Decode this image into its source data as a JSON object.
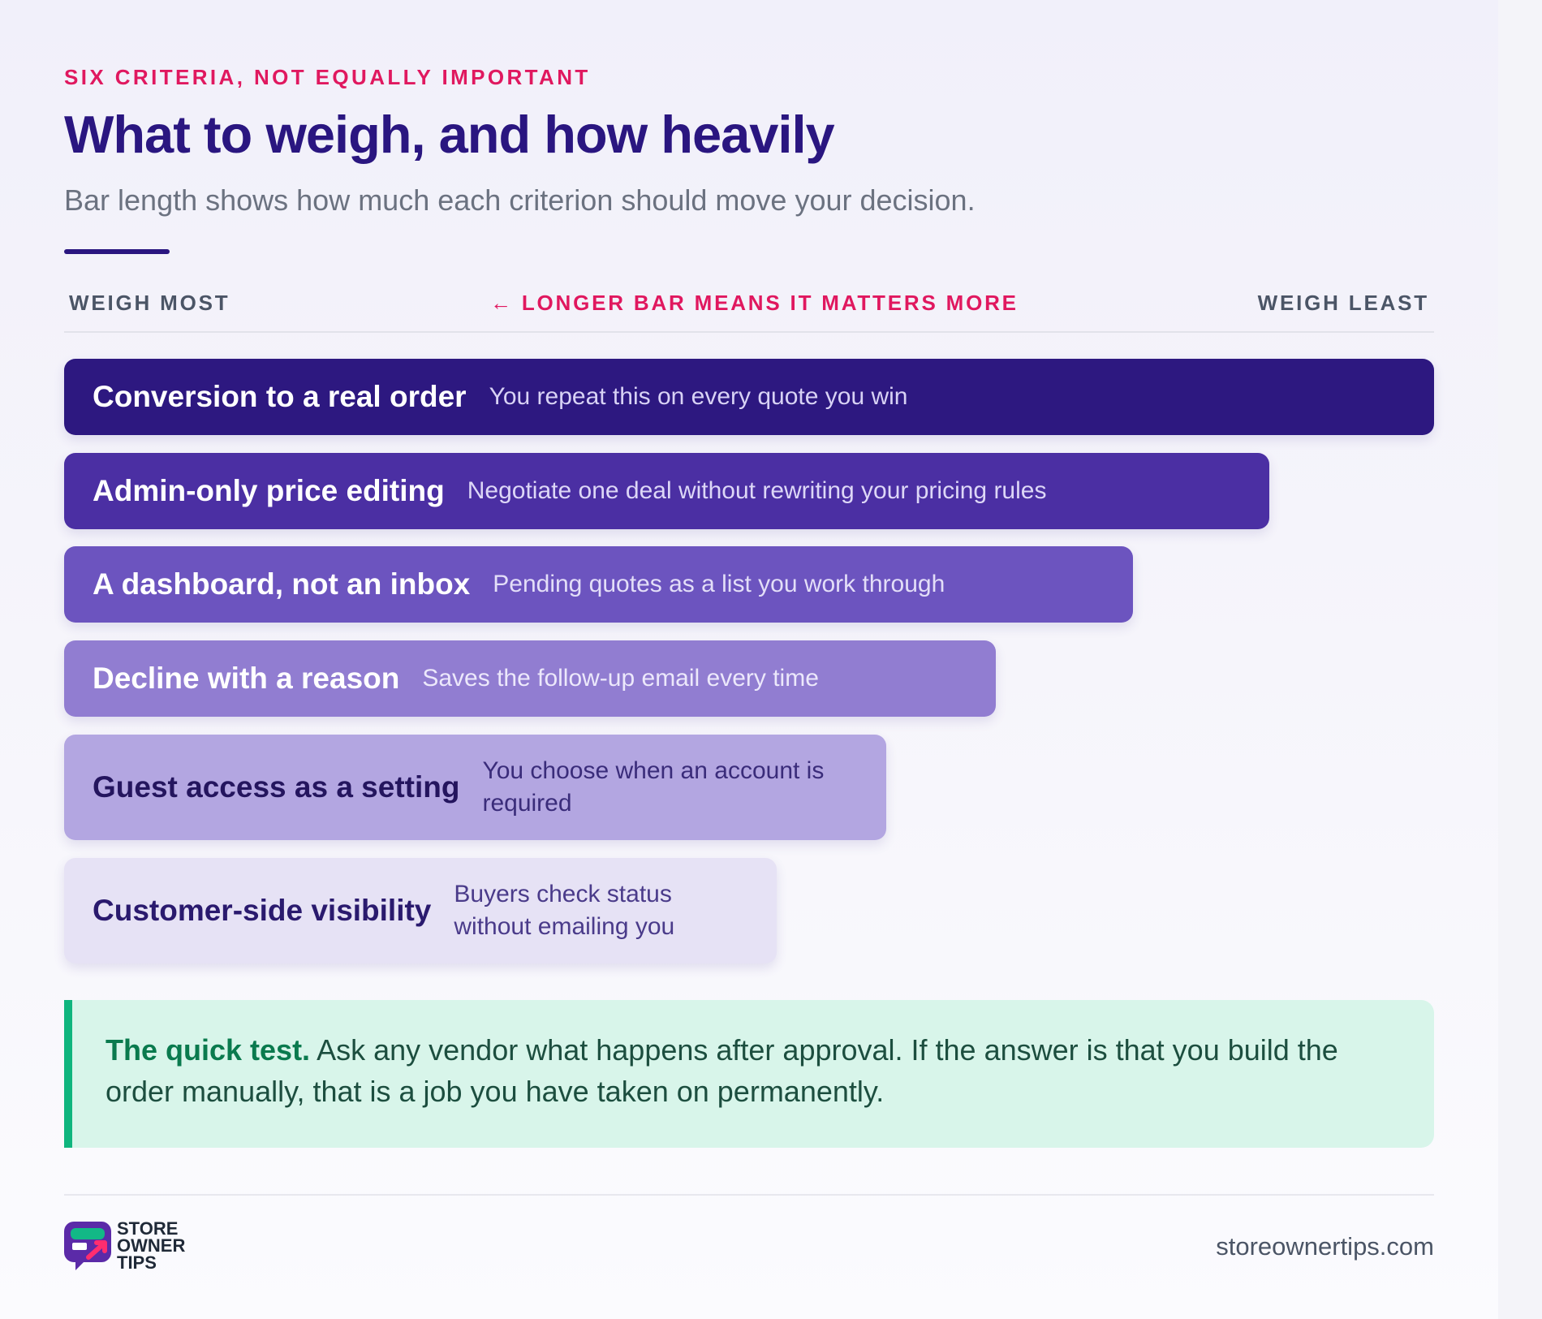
{
  "eyebrow": "SIX CRITERIA, NOT EQUALLY IMPORTANT",
  "title": "What to weigh, and how heavily",
  "subtitle": "Bar length shows how much each criterion should move your decision.",
  "scale": {
    "left": "WEIGH MOST",
    "middle": "← LONGER BAR MEANS IT MATTERS MORE",
    "right": "WEIGH LEAST"
  },
  "chart_data": {
    "type": "bar",
    "orientation": "horizontal",
    "categories": [
      "Conversion to a real order",
      "Admin-only price editing",
      "A dashboard, not an inbox",
      "Decline with a reason",
      "Guest access as a setting",
      "Customer-side visibility"
    ],
    "values": [
      100,
      88,
      78,
      68,
      60,
      52
    ],
    "value_unit": "percent of longest bar",
    "annotations": [
      "You repeat this on every quote you win",
      "Negotiate one deal without rewriting your pricing rules",
      "Pending quotes as a list you work through",
      "Saves the follow-up email every time",
      "You choose when an account is required",
      "Buyers check status without emailing you"
    ],
    "colors": [
      "#2d1880",
      "#4b2fa3",
      "#6c54bf",
      "#917dd1",
      "#b3a6e1",
      "#e6e2f5"
    ],
    "label_colors": [
      "#ffffff",
      "#ffffff",
      "#ffffff",
      "#ffffff",
      "#24155e",
      "#2a1a6e"
    ],
    "desc_colors": [
      "#d8d2f5",
      "#ddd7f7",
      "#e3def8",
      "#ece8fb",
      "#3a2c7a",
      "#4a3b8a"
    ],
    "xlabel": "",
    "ylabel": ""
  },
  "callout": {
    "lead": "The quick test.",
    "body": "Ask any vendor what happens after approval. If the answer is that you build the order manually, that is a job you have taken on permanently."
  },
  "footer": {
    "logo_lines": [
      "STORE",
      "OWNER",
      "TIPS"
    ],
    "site": "storeownertips.com"
  }
}
